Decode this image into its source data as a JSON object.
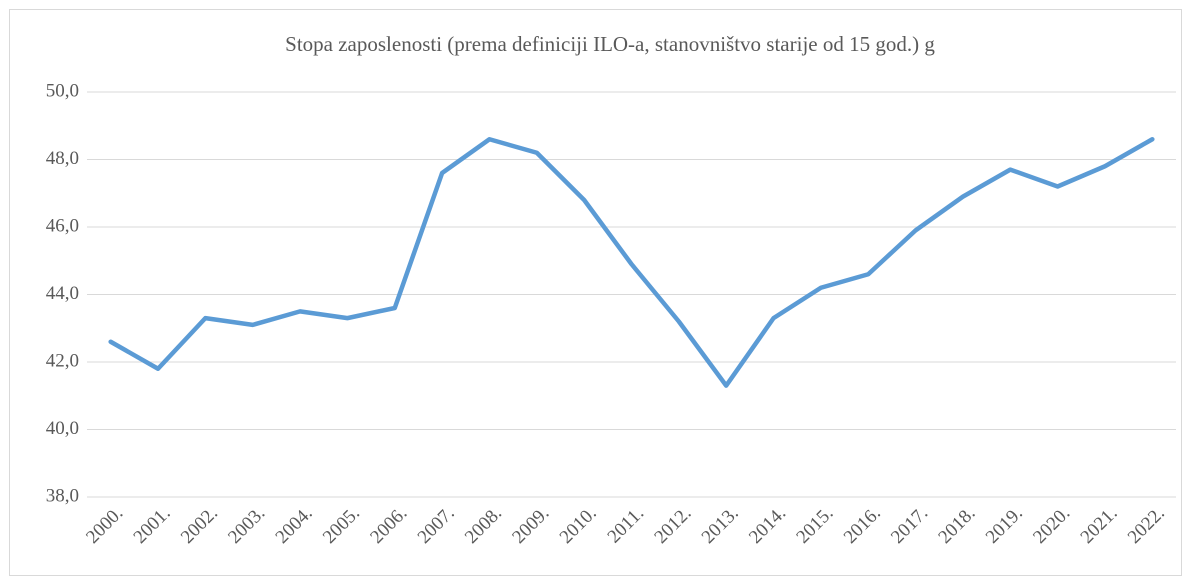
{
  "chart_data": {
    "type": "line",
    "title": "Stopa zaposlenosti (prema definiciji ILO-a, stanovništvo starije od 15 god.) g",
    "categories": [
      "2000.",
      "2001.",
      "2002.",
      "2003.",
      "2004.",
      "2005.",
      "2006.",
      "2007.",
      "2008.",
      "2009.",
      "2010.",
      "2011.",
      "2012.",
      "2013.",
      "2014.",
      "2015.",
      "2016.",
      "2017.",
      "2018.",
      "2019.",
      "2020.",
      "2021.",
      "2022."
    ],
    "series": [
      {
        "name": "Stopa zaposlenosti",
        "color": "#5b9bd5",
        "values": [
          42.6,
          41.8,
          43.3,
          43.1,
          43.5,
          43.3,
          43.6,
          47.6,
          48.6,
          48.2,
          46.8,
          44.9,
          43.2,
          41.3,
          43.3,
          44.2,
          44.6,
          45.9,
          46.9,
          47.7,
          47.2,
          47.8,
          48.6
        ]
      }
    ],
    "ylim": [
      38,
      50
    ],
    "yticks": [
      {
        "value": 38,
        "label": "38,0"
      },
      {
        "value": 40,
        "label": "40,0"
      },
      {
        "value": 42,
        "label": "42,0"
      },
      {
        "value": 44,
        "label": "44,0"
      },
      {
        "value": 46,
        "label": "46,0"
      },
      {
        "value": 48,
        "label": "48,0"
      },
      {
        "value": 50,
        "label": "50,0"
      }
    ],
    "grid": true
  }
}
